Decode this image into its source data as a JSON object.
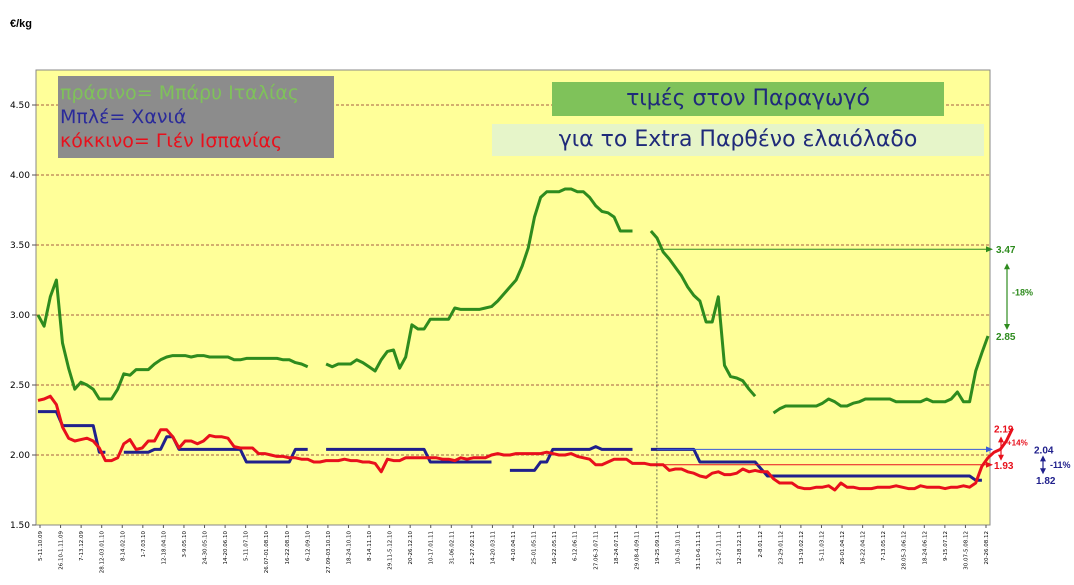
{
  "chart_data": {
    "type": "line",
    "unit_label": "€/kg",
    "ylim": [
      1.5,
      4.75
    ],
    "yticks": [
      "1.50",
      "2.00",
      "2.50",
      "3.00",
      "3.50",
      "4.00",
      "4.50"
    ],
    "grid": true,
    "legend": [
      {
        "text": "πράσινο= Μπάρυ Ιταλίας",
        "color": "#7fc25a"
      },
      {
        "text": "Μπλέ= Χανιά",
        "color": "#2a2a9a"
      },
      {
        "text": "κόκκινο= Γιέν Ισπανίας",
        "color": "#e8101c"
      }
    ],
    "title_lines": [
      "τιμές στον Παραγωγό",
      "για το Extra Παρθένο ελαιόλαδο"
    ],
    "x_tick_labels": [
      "5-11.10.09",
      "26.10-1.11.09",
      "7-13.12.09",
      "28.12-03.01.10",
      "8-14.02.10",
      "1-7.03.10",
      "12-18.04.10",
      "3-9.05.10",
      "24-30.05.10",
      "14-20.06.10",
      "5-11.07.10",
      "26.07-01.08.10",
      "16-22.08.10",
      "6-12.09.10",
      "27.09-03.10.10",
      "18-24.10.10",
      "8-14.11.10",
      "29.11-5.12.10",
      "20-26.12.10",
      "10-17.01.11",
      "31-06.02.11",
      "21-27.02.11",
      "14-20.03.11",
      "4-10.04.11",
      "25-01.05.11",
      "16-22.05.11",
      "6-12.06.11",
      "27.06-3.07.11",
      "18-24.07.11",
      "29.08-4.09.11",
      "19-25.09.11",
      "10-16.10.11",
      "31.10-6.11.11",
      "21-27.11.11",
      "12-18.12.11",
      "2-8.01.12",
      "23-29.01.12",
      "13-19.02.12",
      "5-11.03.12",
      "26-01.04.12",
      "16-22.04.12",
      "7-13.05.12",
      "28.05-3.06.12",
      "18-24.06.12",
      "9-15.07.12",
      "30.07-5.08.12",
      "20-26.08.12"
    ],
    "series": [
      {
        "name": "Μπάρυ Ιταλίας",
        "color": "#2e8b1e",
        "values": [
          3.0,
          2.92,
          3.13,
          3.25,
          2.8,
          2.62,
          2.47,
          2.52,
          2.5,
          2.47,
          2.4,
          2.4,
          2.4,
          2.47,
          2.58,
          2.57,
          2.61,
          2.61,
          2.61,
          2.65,
          2.68,
          2.7,
          2.71,
          2.71,
          2.71,
          2.7,
          2.71,
          2.71,
          2.7,
          2.7,
          2.7,
          2.7,
          2.68,
          2.68,
          2.69,
          2.69,
          2.69,
          2.69,
          2.69,
          2.69,
          2.68,
          2.68,
          2.66,
          2.65,
          2.63,
          null,
          null,
          2.65,
          2.63,
          2.65,
          2.65,
          2.65,
          2.68,
          2.66,
          2.63,
          2.6,
          2.68,
          2.74,
          2.75,
          2.62,
          2.7,
          2.93,
          2.9,
          2.9,
          2.97,
          2.97,
          2.97,
          2.97,
          3.05,
          3.04,
          3.04,
          3.04,
          3.04,
          3.05,
          3.06,
          3.1,
          3.15,
          3.2,
          3.25,
          3.35,
          3.48,
          3.7,
          3.84,
          3.88,
          3.88,
          3.88,
          3.9,
          3.9,
          3.88,
          3.88,
          3.84,
          3.78,
          3.74,
          3.73,
          3.7,
          3.6,
          3.6,
          3.6,
          null,
          null,
          3.6,
          3.55,
          3.45,
          3.4,
          3.34,
          3.28,
          3.2,
          3.14,
          3.1,
          2.95,
          2.95,
          3.13,
          2.64,
          2.56,
          2.55,
          2.53,
          2.47,
          2.42,
          null,
          null,
          2.3,
          2.33,
          2.35,
          2.35,
          2.35,
          2.35,
          2.35,
          2.35,
          2.37,
          2.4,
          2.38,
          2.35,
          2.35,
          2.37,
          2.38,
          2.4,
          2.4,
          2.4,
          2.4,
          2.4,
          2.38,
          2.38,
          2.38,
          2.38,
          2.38,
          2.4,
          2.38,
          2.38,
          2.38,
          2.4,
          2.45,
          2.38,
          2.38,
          2.6,
          2.73,
          2.85
        ]
      },
      {
        "name": "Χανιά",
        "color": "#20208c",
        "values": [
          2.31,
          2.31,
          2.31,
          2.31,
          2.21,
          2.21,
          2.21,
          2.21,
          2.21,
          2.21,
          2.02,
          2.02,
          null,
          null,
          2.02,
          2.02,
          2.02,
          2.02,
          2.02,
          2.04,
          2.04,
          2.13,
          2.13,
          2.04,
          2.04,
          2.04,
          2.04,
          2.04,
          2.04,
          2.04,
          2.04,
          2.04,
          2.04,
          2.04,
          1.95,
          1.95,
          1.95,
          1.95,
          1.95,
          1.95,
          1.95,
          1.95,
          2.04,
          2.04,
          2.04,
          null,
          null,
          2.04,
          2.04,
          2.04,
          2.04,
          2.04,
          2.04,
          2.04,
          2.04,
          2.04,
          2.04,
          2.04,
          2.04,
          2.04,
          2.04,
          2.04,
          2.04,
          2.04,
          1.95,
          1.95,
          1.95,
          1.95,
          1.95,
          1.95,
          1.95,
          1.95,
          1.95,
          1.95,
          1.95,
          null,
          null,
          1.89,
          1.89,
          1.89,
          1.89,
          1.89,
          1.95,
          1.95,
          2.04,
          2.04,
          2.04,
          2.04,
          2.04,
          2.04,
          2.04,
          2.06,
          2.04,
          2.04,
          2.04,
          2.04,
          2.04,
          2.04,
          null,
          null,
          2.04,
          2.04,
          2.04,
          2.04,
          2.04,
          2.04,
          2.04,
          2.04,
          1.95,
          1.95,
          1.95,
          1.95,
          1.95,
          1.95,
          1.95,
          1.95,
          1.95,
          1.95,
          1.9,
          1.85,
          1.85,
          1.85,
          1.85,
          1.85,
          1.85,
          1.85,
          1.85,
          1.85,
          1.85,
          1.85,
          1.85,
          1.85,
          1.85,
          1.85,
          1.85,
          1.85,
          1.85,
          1.85,
          1.85,
          1.85,
          1.85,
          1.85,
          1.85,
          1.85,
          1.85,
          1.85,
          1.85,
          1.85,
          1.85,
          1.85,
          1.85,
          1.85,
          1.85,
          1.82,
          1.82
        ]
      },
      {
        "name": "Γιέν Ισπανίας",
        "color": "#e8101c",
        "values": [
          2.39,
          2.4,
          2.42,
          2.36,
          2.2,
          2.12,
          2.1,
          2.11,
          2.12,
          2.1,
          2.05,
          1.96,
          1.96,
          1.98,
          2.08,
          2.11,
          2.04,
          2.05,
          2.1,
          2.1,
          2.18,
          2.18,
          2.13,
          2.05,
          2.1,
          2.1,
          2.08,
          2.1,
          2.14,
          2.13,
          2.13,
          2.12,
          2.06,
          2.05,
          2.05,
          2.05,
          2.01,
          2.01,
          2.0,
          1.99,
          1.99,
          1.98,
          1.98,
          1.97,
          1.97,
          1.95,
          1.95,
          1.96,
          1.96,
          1.96,
          1.97,
          1.96,
          1.96,
          1.95,
          1.95,
          1.94,
          1.88,
          1.97,
          1.96,
          1.96,
          1.98,
          1.98,
          1.98,
          1.98,
          1.98,
          1.98,
          1.97,
          1.97,
          1.96,
          1.98,
          1.97,
          1.98,
          1.98,
          1.98,
          2.0,
          2.01,
          2.0,
          2.0,
          2.01,
          2.01,
          2.01,
          2.01,
          2.01,
          2.02,
          2.01,
          2.0,
          2.0,
          2.01,
          1.99,
          1.98,
          1.97,
          1.93,
          1.93,
          1.95,
          1.97,
          1.97,
          1.97,
          1.94,
          1.94,
          1.94,
          1.93,
          1.93,
          1.93,
          1.89,
          1.9,
          1.9,
          1.88,
          1.87,
          1.85,
          1.84,
          1.87,
          1.88,
          1.86,
          1.86,
          1.87,
          1.9,
          1.88,
          1.89,
          1.88,
          1.88,
          1.83,
          1.8,
          1.8,
          1.8,
          1.77,
          1.76,
          1.76,
          1.77,
          1.77,
          1.78,
          1.75,
          1.8,
          1.77,
          1.77,
          1.76,
          1.76,
          1.76,
          1.77,
          1.77,
          1.77,
          1.78,
          1.77,
          1.76,
          1.76,
          1.78,
          1.77,
          1.77,
          1.77,
          1.76,
          1.77,
          1.77,
          1.78,
          1.77,
          1.8,
          1.92,
          1.98,
          2.02,
          2.04,
          2.1,
          2.19
        ]
      }
    ],
    "annotations": {
      "green": {
        "high": "3.47",
        "low": "2.85",
        "change": "-18%"
      },
      "red": {
        "high": "2.19",
        "low": "1.93",
        "change": "+14%"
      },
      "blue": {
        "high": "2.04",
        "low": "1.82",
        "change": "-11%"
      }
    }
  }
}
